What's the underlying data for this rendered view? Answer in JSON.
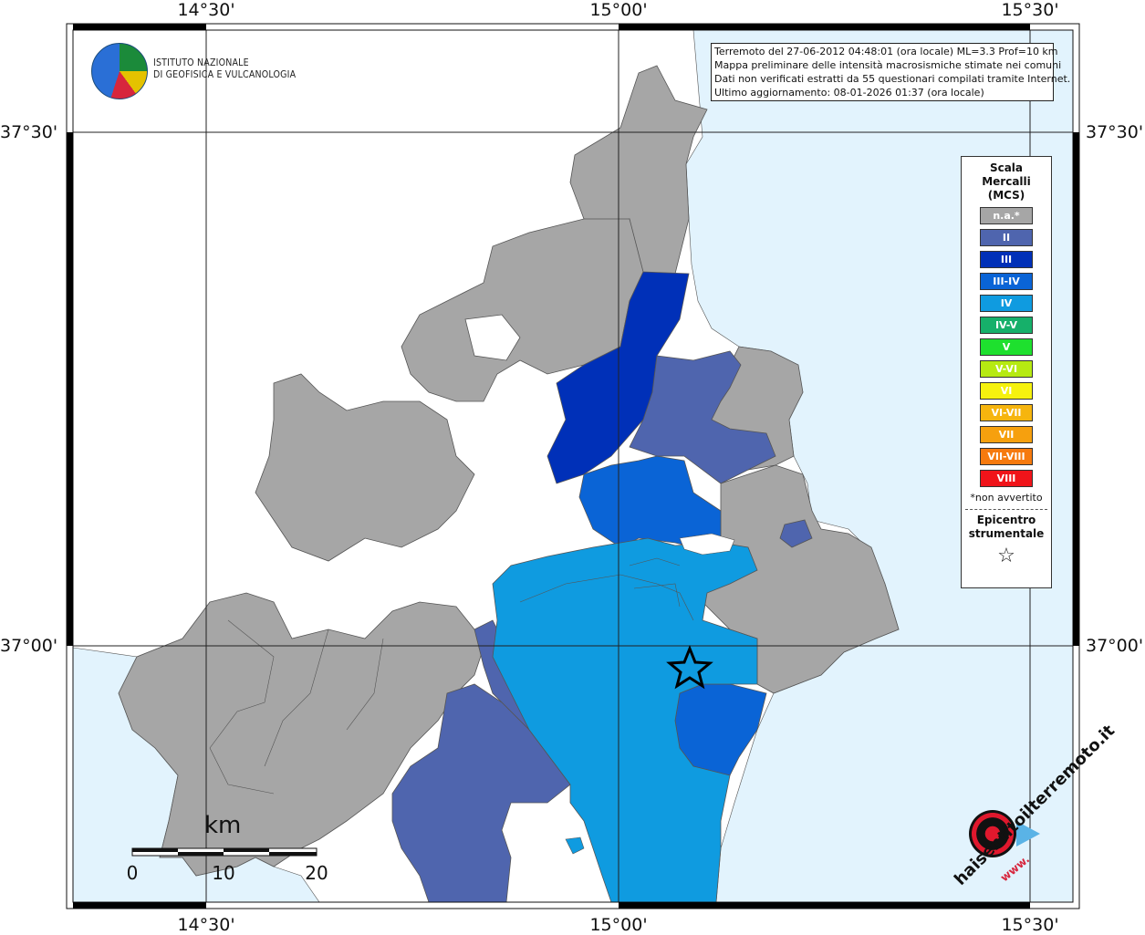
{
  "map": {
    "info_lines": [
      "Terremoto del 27-06-2012 04:48:01 (ora locale) ML=3.3 Prof=10 km",
      "Mappa preliminare delle intensità macrosismiche stimate nei comuni",
      "Dati non verificati estratti da 55 questionari compilati tramite Internet.",
      "Ultimo aggiornamento: 08-01-2026 01:37 (ora locale)"
    ],
    "lon_labels": [
      "14°30'",
      "15°00'",
      "15°30'"
    ],
    "lat_labels": [
      "37°30'",
      "37°00'"
    ],
    "scale_bar": {
      "unit": "km",
      "ticks": [
        "0",
        "10",
        "20"
      ]
    },
    "logo_ingv": {
      "line1": "ISTITUTO NAZIONALE",
      "line2": "DI GEOFISICA E VULCANOLOGIA"
    },
    "logo_hsit": {
      "text_top": "haisentitoilterremoto.it",
      "text_bottom": "www."
    }
  },
  "legend": {
    "title_lines": [
      "Scala",
      "Mercalli",
      "(MCS)"
    ],
    "items": [
      {
        "label": "n.a.*",
        "color": "#a6a6a6"
      },
      {
        "label": "II",
        "color": "#4f65ae"
      },
      {
        "label": "III",
        "color": "#0030b8"
      },
      {
        "label": "III-IV",
        "color": "#0a64d6"
      },
      {
        "label": "IV",
        "color": "#0f9be0"
      },
      {
        "label": "IV-V",
        "color": "#16b06a"
      },
      {
        "label": "V",
        "color": "#1ee02e"
      },
      {
        "label": "V-VI",
        "color": "#b6ea12"
      },
      {
        "label": "VI",
        "color": "#f6f20e"
      },
      {
        "label": "VI-VII",
        "color": "#f6b50e"
      },
      {
        "label": "VII",
        "color": "#f6a00e"
      },
      {
        "label": "VII-VIII",
        "color": "#f67a0e"
      },
      {
        "label": "VIII",
        "color": "#f0141a"
      }
    ],
    "note": "*non avvertito",
    "epicenter_lines": [
      "Epicentro",
      "strumentale"
    ],
    "epicenter_symbol": "☆"
  },
  "colors": {
    "sea": "#e2f3fd",
    "land": "#ffffff",
    "na": "#a6a6a6",
    "II": "#4f65ae",
    "III": "#0030b8",
    "III_IV": "#0a64d6",
    "IV": "#0f9be0"
  }
}
